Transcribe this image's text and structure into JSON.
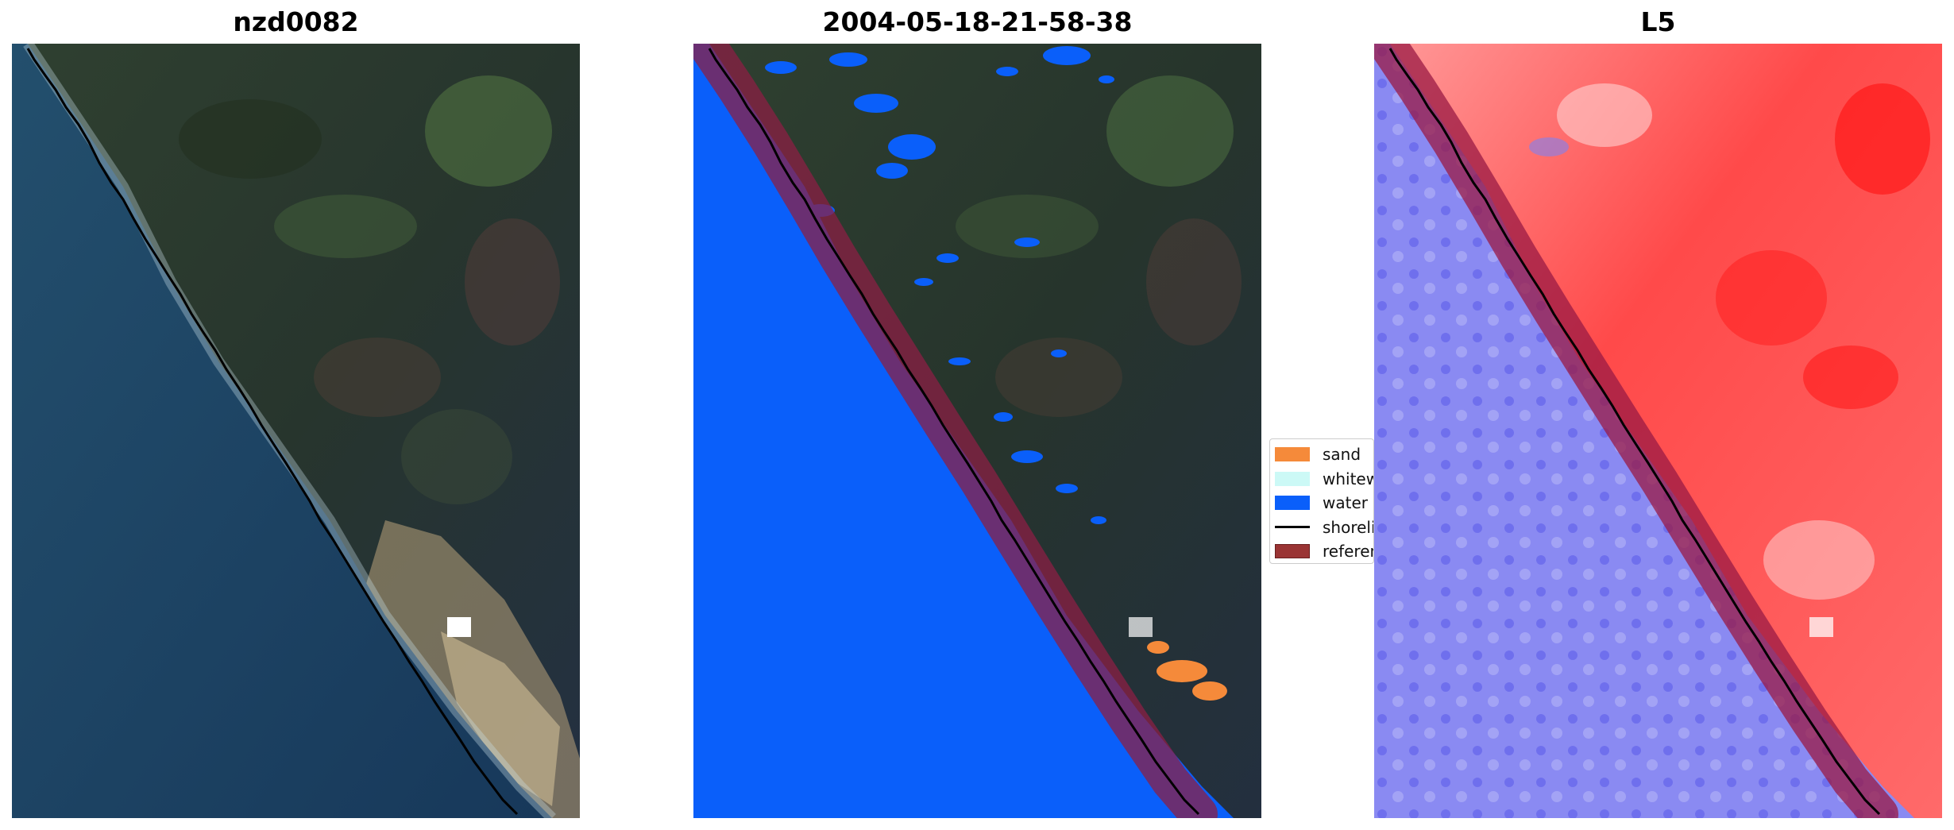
{
  "panels": [
    {
      "title": "nzd0082"
    },
    {
      "title": "2004-05-18-21-58-38"
    },
    {
      "title": "L5"
    }
  ],
  "legend": {
    "items": [
      {
        "label": "sand",
        "color": "#f58a3a"
      },
      {
        "label": "whitewater",
        "color": "#ccf9f6"
      },
      {
        "label": "water",
        "color": "#0a5ffa"
      },
      {
        "label": "shoreline",
        "color": "#000000"
      },
      {
        "label": "reference shoreline buffer",
        "color": "#9a3434"
      }
    ]
  },
  "colors": {
    "ocean": "#1d4566",
    "land": "#2b3a2e",
    "water_class": "#0a5ffa",
    "buffer": "#7a1f3c",
    "index_positive": "#ff2020",
    "index_negative": "#6a6af0"
  }
}
